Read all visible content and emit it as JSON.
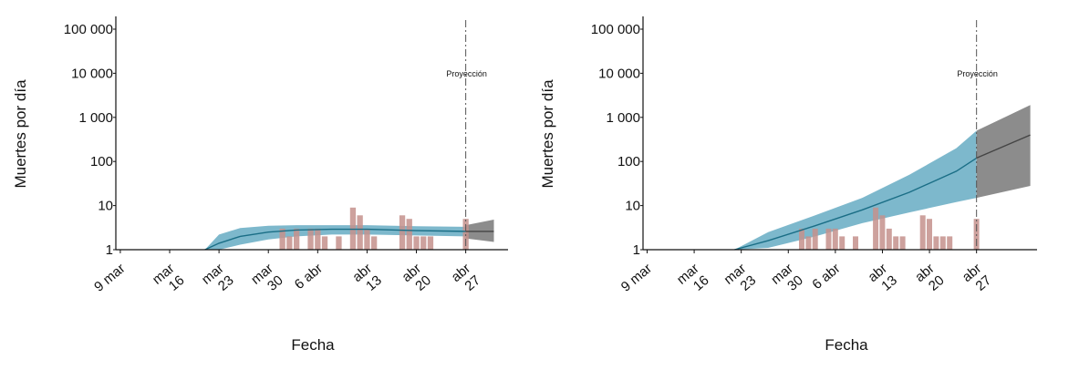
{
  "chart_data": [
    {
      "type": "bar",
      "title": "",
      "xlabel": "Fecha",
      "ylabel": "Muertes por día",
      "y_scale": "log",
      "ylim": [
        1,
        100000
      ],
      "y_ticks": [
        1,
        10,
        100,
        1000,
        10000,
        100000
      ],
      "y_tick_labels": [
        "1",
        "10",
        "100",
        "1 000",
        "10 000",
        "100 000"
      ],
      "x_range": [
        "2020-03-05",
        "2020-05-03"
      ],
      "x_ticks": [
        {
          "date": "2020-03-09",
          "label": "9 mar"
        },
        {
          "date": "2020-03-16",
          "label": "mar 16"
        },
        {
          "date": "2020-03-23",
          "label": "mar 23"
        },
        {
          "date": "2020-03-30",
          "label": "mar 30"
        },
        {
          "date": "2020-04-06",
          "label": "6 abr"
        },
        {
          "date": "2020-04-13",
          "label": "abr 13"
        },
        {
          "date": "2020-04-20",
          "label": "abr 20"
        },
        {
          "date": "2020-04-27",
          "label": "abr 27"
        }
      ],
      "projection_date": "2020-04-27",
      "projection_label": "Proyección",
      "colors": {
        "bars": "#c4908c",
        "fit_band": "#7db8cc",
        "fit_line": "#1a6e86",
        "projection_band": "#8c8c8c",
        "projection_line": "#444444"
      },
      "deaths": {
        "dates": [
          "2020-04-01",
          "2020-04-02",
          "2020-04-03",
          "2020-04-05",
          "2020-04-06",
          "2020-04-07",
          "2020-04-09",
          "2020-04-11",
          "2020-04-12",
          "2020-04-13",
          "2020-04-14",
          "2020-04-18",
          "2020-04-19",
          "2020-04-20",
          "2020-04-21",
          "2020-04-22",
          "2020-04-27"
        ],
        "values": [
          3,
          2,
          3,
          3,
          3,
          2,
          2,
          9,
          6,
          3,
          2,
          6,
          5,
          2,
          2,
          2,
          5
        ]
      },
      "fit": {
        "dates": [
          "2020-03-21",
          "2020-03-23",
          "2020-03-26",
          "2020-03-30",
          "2020-04-03",
          "2020-04-08",
          "2020-04-13",
          "2020-04-20",
          "2020-04-27"
        ],
        "mean": [
          1.0,
          1.4,
          2.0,
          2.5,
          2.8,
          2.9,
          2.9,
          2.7,
          2.6
        ],
        "lower": [
          1.0,
          1.0,
          1.3,
          1.7,
          2.0,
          2.2,
          2.2,
          2.1,
          2.0
        ],
        "upper": [
          1.0,
          2.2,
          3.1,
          3.5,
          3.6,
          3.6,
          3.6,
          3.4,
          3.3
        ]
      },
      "projection": {
        "dates": [
          "2020-04-27",
          "2020-05-01"
        ],
        "mean": [
          2.6,
          2.6
        ],
        "lower": [
          1.8,
          1.5
        ],
        "upper": [
          3.6,
          4.8
        ]
      }
    },
    {
      "type": "bar",
      "title": "",
      "xlabel": "Fecha",
      "ylabel": "Muertes por día",
      "y_scale": "log",
      "ylim": [
        1,
        100000
      ],
      "y_ticks": [
        1,
        10,
        100,
        1000,
        10000,
        100000
      ],
      "y_tick_labels": [
        "1",
        "10",
        "100",
        "1 000",
        "10 000",
        "100 000"
      ],
      "x_range": [
        "2020-03-05",
        "2020-05-06"
      ],
      "x_ticks": [
        {
          "date": "2020-03-09",
          "label": "9 mar"
        },
        {
          "date": "2020-03-16",
          "label": "mar 16"
        },
        {
          "date": "2020-03-23",
          "label": "mar 23"
        },
        {
          "date": "2020-03-30",
          "label": "mar 30"
        },
        {
          "date": "2020-04-06",
          "label": "6 abr"
        },
        {
          "date": "2020-04-13",
          "label": "abr 13"
        },
        {
          "date": "2020-04-20",
          "label": "abr 20"
        },
        {
          "date": "2020-04-27",
          "label": "abr 27"
        }
      ],
      "projection_date": "2020-04-27",
      "projection_label": "Proyección",
      "colors": {
        "bars": "#c4908c",
        "fit_band": "#7db8cc",
        "fit_line": "#1a6e86",
        "projection_band": "#8c8c8c",
        "projection_line": "#444444"
      },
      "deaths": {
        "dates": [
          "2020-04-01",
          "2020-04-02",
          "2020-04-03",
          "2020-04-05",
          "2020-04-06",
          "2020-04-07",
          "2020-04-09",
          "2020-04-12",
          "2020-04-13",
          "2020-04-14",
          "2020-04-15",
          "2020-04-16",
          "2020-04-19",
          "2020-04-20",
          "2020-04-21",
          "2020-04-22",
          "2020-04-23",
          "2020-04-27"
        ],
        "values": [
          3,
          2,
          3,
          3,
          3,
          2,
          2,
          9,
          6,
          3,
          2,
          2,
          6,
          5,
          2,
          2,
          2,
          5
        ]
      },
      "fit": {
        "dates": [
          "2020-03-22",
          "2020-03-27",
          "2020-04-03",
          "2020-04-10",
          "2020-04-17",
          "2020-04-24",
          "2020-04-27"
        ],
        "mean": [
          1.0,
          1.6,
          3.5,
          8,
          20,
          60,
          120
        ],
        "lower": [
          1.0,
          1.1,
          2.0,
          4,
          7,
          12,
          15
        ],
        "upper": [
          1.0,
          2.5,
          6,
          15,
          50,
          200,
          500
        ]
      },
      "projection": {
        "dates": [
          "2020-04-27",
          "2020-05-05"
        ],
        "mean": [
          120,
          400
        ],
        "lower": [
          15,
          28
        ],
        "upper": [
          500,
          1900
        ]
      }
    }
  ]
}
